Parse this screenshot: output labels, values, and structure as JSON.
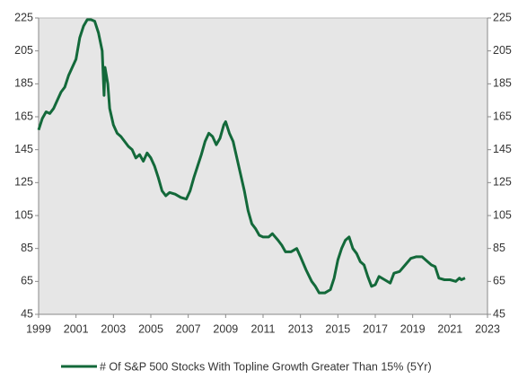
{
  "chart_data": {
    "type": "line",
    "x": [
      1999.0,
      1999.2,
      1999.4,
      1999.6,
      1999.8,
      2000.0,
      2000.2,
      2000.4,
      2000.6,
      2000.8,
      2001.0,
      2001.2,
      2001.4,
      2001.6,
      2001.8,
      2002.0,
      2002.2,
      2002.4,
      2002.5,
      2002.55,
      2002.7,
      2002.8,
      2003.0,
      2003.2,
      2003.4,
      2003.6,
      2003.8,
      2004.0,
      2004.2,
      2004.4,
      2004.6,
      2004.8,
      2005.0,
      2005.2,
      2005.4,
      2005.6,
      2005.8,
      2006.0,
      2006.3,
      2006.6,
      2006.9,
      2007.1,
      2007.3,
      2007.5,
      2007.7,
      2007.9,
      2008.1,
      2008.3,
      2008.5,
      2008.7,
      2008.9,
      2009.0,
      2009.2,
      2009.4,
      2009.6,
      2009.8,
      2010.0,
      2010.2,
      2010.4,
      2010.6,
      2010.8,
      2011.0,
      2011.3,
      2011.5,
      2011.8,
      2012.0,
      2012.2,
      2012.5,
      2012.8,
      2013.0,
      2013.3,
      2013.6,
      2013.8,
      2014.0,
      2014.3,
      2014.6,
      2014.8,
      2015.0,
      2015.2,
      2015.4,
      2015.6,
      2015.8,
      2016.0,
      2016.2,
      2016.4,
      2016.6,
      2016.8,
      2017.0,
      2017.2,
      2017.5,
      2017.8,
      2018.0,
      2018.3,
      2018.6,
      2018.9,
      2019.2,
      2019.5,
      2019.8,
      2020.0,
      2020.2,
      2020.4,
      2020.7,
      2021.0,
      2021.3,
      2021.5,
      2021.6,
      2021.8
    ],
    "series": [
      {
        "name": "# Of S&P 500 Stocks With Topline Growth Greater Than 15% (5Yr)",
        "color": "#13693a",
        "values": [
          157,
          164,
          168,
          167,
          170,
          175,
          180,
          183,
          190,
          195,
          200,
          213,
          220,
          224,
          224,
          223,
          216,
          205,
          178,
          195,
          185,
          170,
          160,
          155,
          153,
          150,
          147,
          145,
          140,
          142,
          138,
          143,
          140,
          135,
          128,
          120,
          117,
          119,
          118,
          116,
          115,
          120,
          128,
          135,
          142,
          150,
          155,
          153,
          148,
          152,
          160,
          162,
          155,
          150,
          140,
          130,
          120,
          108,
          100,
          97,
          93,
          92,
          92,
          94,
          90,
          87,
          83,
          83,
          85,
          80,
          72,
          65,
          62,
          58,
          58,
          60,
          67,
          78,
          85,
          90,
          92,
          85,
          82,
          77,
          75,
          68,
          62,
          63,
          68,
          66,
          64,
          70,
          71,
          75,
          79,
          80,
          80,
          77,
          75,
          74,
          67,
          66,
          66,
          65,
          67,
          66,
          67
        ]
      }
    ],
    "xlim": [
      1999,
      2023
    ],
    "xticks": [
      1999,
      2001,
      2003,
      2005,
      2007,
      2009,
      2011,
      2013,
      2015,
      2017,
      2019,
      2021,
      2023
    ],
    "ylim": [
      45,
      225
    ],
    "yticks": [
      45,
      65,
      85,
      105,
      125,
      145,
      165,
      185,
      205,
      225
    ],
    "y2lim": [
      45,
      225
    ],
    "y2ticks": [
      45,
      65,
      85,
      105,
      125,
      145,
      165,
      185,
      205,
      225
    ],
    "legend": "bottom"
  }
}
